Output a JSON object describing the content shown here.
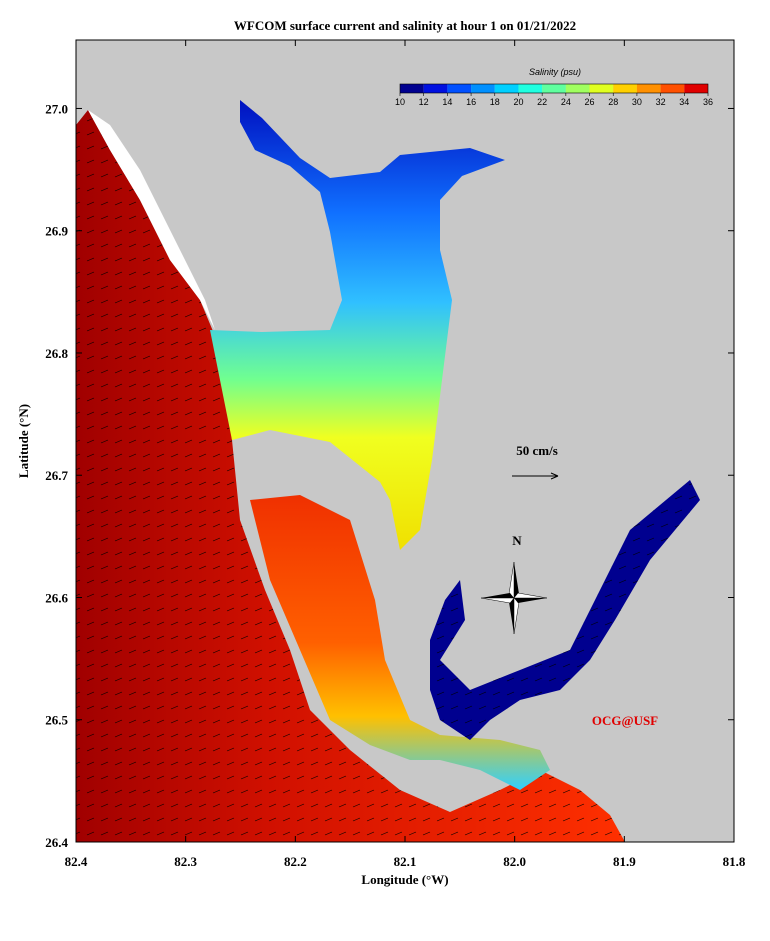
{
  "chart_data": {
    "type": "map",
    "title": "WFCOM surface current and salinity at hour 1 on 01/21/2022",
    "xlabel": "Longitude (°W)",
    "ylabel": "Latitude (°N)",
    "xlim": [
      82.4,
      81.8
    ],
    "ylim": [
      26.4,
      27.056
    ],
    "xticks": [
      82.4,
      82.3,
      82.2,
      82.1,
      {
        "value": 82.0,
        "label": "82.0"
      },
      81.9,
      81.8
    ],
    "yticks": [
      {
        "value": 26.4,
        "label": "26.4"
      },
      26.5,
      26.6,
      26.7,
      26.8,
      26.9,
      {
        "value": 27.0,
        "label": "27.0"
      }
    ],
    "colorbar": {
      "label": "Salinity (psu)",
      "lim": [
        10,
        36
      ],
      "ticks": [
        10,
        12,
        14,
        16,
        18,
        20,
        22,
        24,
        26,
        28,
        30,
        32,
        34,
        36
      ],
      "colors": [
        "#00008f",
        "#0010e0",
        "#0050ff",
        "#0090ff",
        "#00d0ff",
        "#20ffe0",
        "#60ff9f",
        "#a0ff60",
        "#e0ff20",
        "#ffd000",
        "#ff9000",
        "#ff5000",
        "#e00000"
      ]
    },
    "annotations": {
      "scale": "50 cm/s",
      "north": "N",
      "credit": "OCG@USF"
    }
  }
}
